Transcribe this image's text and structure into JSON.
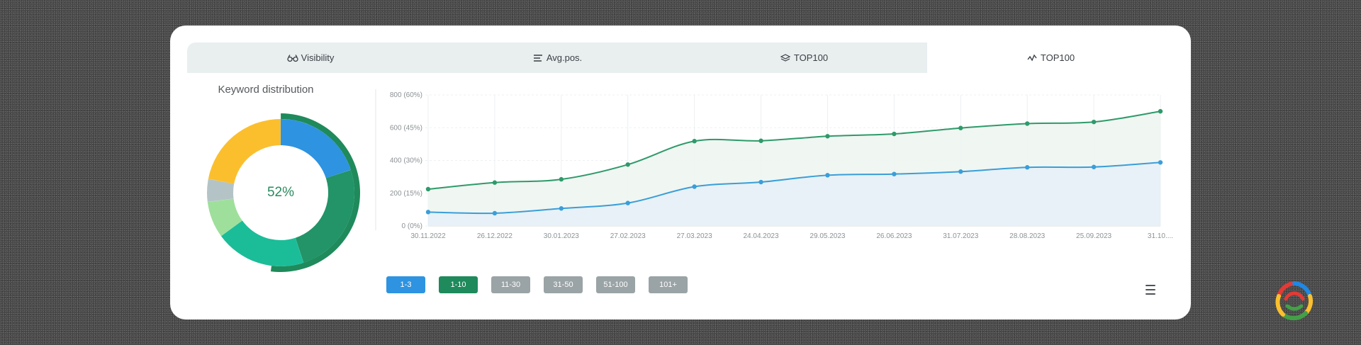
{
  "tabs": [
    {
      "label": "Visibility",
      "icon": "glasses-icon",
      "active": false
    },
    {
      "label": "Avg.pos.",
      "icon": "list-icon",
      "active": false
    },
    {
      "label": "TOP100",
      "icon": "layers-icon",
      "active": false
    },
    {
      "label": "TOP100",
      "icon": "trend-icon",
      "active": true
    }
  ],
  "donut": {
    "title": "Keyword distribution",
    "center_label": "52%",
    "outer_ring": {
      "fraction": 0.52,
      "color": "#1f8a5b"
    },
    "segments": [
      {
        "fraction": 0.2,
        "color": "#2e93e0"
      },
      {
        "fraction": 0.25,
        "color": "#229467"
      },
      {
        "fraction": 0.2,
        "color": "#1bbd98"
      },
      {
        "fraction": 0.08,
        "color": "#9fdf9c"
      },
      {
        "fraction": 0.05,
        "color": "#b4c4c6"
      },
      {
        "fraction": 0.22,
        "color": "#fbbf2e"
      }
    ]
  },
  "chart_data": {
    "type": "area",
    "x": [
      "30.11.2022",
      "26.12.2022",
      "30.01.2023",
      "27.02.2023",
      "27.03.2023",
      "24.04.2023",
      "29.05.2023",
      "26.06.2023",
      "31.07.2023",
      "28.08.2023",
      "25.09.2023",
      "31.10...."
    ],
    "y_ticks": [
      "0 (0%)",
      "200 (15%)",
      "400 (30%)",
      "600 (45%)",
      "800 (60%)"
    ],
    "ylim": [
      0,
      800
    ],
    "series": [
      {
        "name": "1-10",
        "color": "#2e9a6a",
        "fill": "#eef5f1",
        "values": [
          225,
          265,
          285,
          375,
          518,
          520,
          548,
          562,
          598,
          625,
          635,
          700
        ]
      },
      {
        "name": "1-3",
        "color": "#3a9ed8",
        "fill": "#e6f1f7",
        "values": [
          85,
          78,
          107,
          140,
          240,
          268,
          310,
          317,
          332,
          358,
          360,
          388
        ]
      }
    ],
    "grid": true
  },
  "legend": [
    {
      "label": "1-3",
      "color": "#2e93e0"
    },
    {
      "label": "1-10",
      "color": "#1f8a5b"
    },
    {
      "label": "11-30",
      "color": "#9aa3a6"
    },
    {
      "label": "31-50",
      "color": "#9aa3a6"
    },
    {
      "label": "51-100",
      "color": "#9aa3a6"
    },
    {
      "label": "101+",
      "color": "#9aa3a6"
    }
  ],
  "menu_icon": "hamburger-menu-icon"
}
